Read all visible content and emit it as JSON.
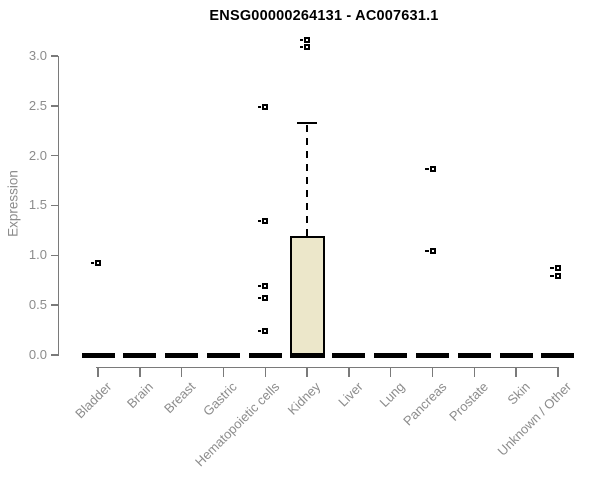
{
  "page": {
    "background": "#ffffff"
  },
  "chart_data": {
    "type": "box",
    "title": "ENSG00000264131 - AC007631.1",
    "ylabel": "Expression",
    "xlabel": "",
    "ylim": [
      0,
      3.2
    ],
    "grid": false,
    "legend": null,
    "yticks": [
      {
        "value": 0.0,
        "label": "0.0"
      },
      {
        "value": 0.5,
        "label": "0.5"
      },
      {
        "value": 1.0,
        "label": "1.0"
      },
      {
        "value": 1.5,
        "label": "1.5"
      },
      {
        "value": 2.0,
        "label": "2.0"
      },
      {
        "value": 2.5,
        "label": "2.5"
      },
      {
        "value": 3.0,
        "label": "3.0"
      }
    ],
    "categories": [
      "Bladder",
      "Brain",
      "Breast",
      "Gastric",
      "Hematopoietic cells",
      "Kidney",
      "Liver",
      "Lung",
      "Pancreas",
      "Prostate",
      "Skin",
      "Unknown / Other"
    ],
    "boxes": [
      {
        "category": "Bladder",
        "q1": 0,
        "median": 0,
        "q3": 0,
        "whisker_low": 0,
        "whisker_high": 0,
        "outliers": [
          0.92
        ]
      },
      {
        "category": "Brain",
        "q1": 0,
        "median": 0,
        "q3": 0,
        "whisker_low": 0,
        "whisker_high": 0,
        "outliers": []
      },
      {
        "category": "Breast",
        "q1": 0,
        "median": 0,
        "q3": 0,
        "whisker_low": 0,
        "whisker_high": 0,
        "outliers": []
      },
      {
        "category": "Gastric",
        "q1": 0,
        "median": 0,
        "q3": 0,
        "whisker_low": 0,
        "whisker_high": 0,
        "outliers": []
      },
      {
        "category": "Hematopoietic cells",
        "q1": 0,
        "median": 0,
        "q3": 0,
        "whisker_low": 0,
        "whisker_high": 0,
        "outliers": [
          2.49,
          1.34,
          0.69,
          0.57,
          0.24
        ]
      },
      {
        "category": "Kidney",
        "q1": 0,
        "median": 0,
        "q3": 1.19,
        "whisker_low": 0,
        "whisker_high": 2.33,
        "outliers": [
          3.16,
          3.09
        ]
      },
      {
        "category": "Liver",
        "q1": 0,
        "median": 0,
        "q3": 0,
        "whisker_low": 0,
        "whisker_high": 0,
        "outliers": []
      },
      {
        "category": "Lung",
        "q1": 0,
        "median": 0,
        "q3": 0,
        "whisker_low": 0,
        "whisker_high": 0,
        "outliers": []
      },
      {
        "category": "Pancreas",
        "q1": 0,
        "median": 0,
        "q3": 0,
        "whisker_low": 0,
        "whisker_high": 0,
        "outliers": [
          1.87,
          1.04
        ]
      },
      {
        "category": "Prostate",
        "q1": 0,
        "median": 0,
        "q3": 0,
        "whisker_low": 0,
        "whisker_high": 0,
        "outliers": []
      },
      {
        "category": "Skin",
        "q1": 0,
        "median": 0,
        "q3": 0,
        "whisker_low": 0,
        "whisker_high": 0,
        "outliers": []
      },
      {
        "category": "Unknown / Other",
        "q1": 0,
        "median": 0,
        "q3": 0,
        "whisker_low": 0,
        "whisker_high": 0,
        "outliers": [
          0.87,
          0.79
        ]
      }
    ],
    "colors": {
      "box_fill": "#ece7ca",
      "box_border": "#000000",
      "whisker": "#000000",
      "outlier": "#000000",
      "axis": "#7a7a7a",
      "tick_text": "#8c8c8c",
      "title_text": "#000000"
    }
  }
}
